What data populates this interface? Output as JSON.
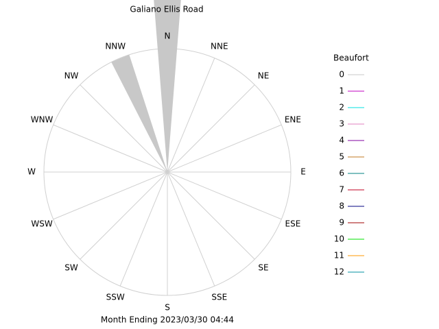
{
  "chart_data": {
    "type": "windrose",
    "title": "Galiano Ellis Road",
    "footer": "Month Ending 2023/03/30 04:44",
    "legend_title": "Beaufort",
    "categories": [
      "N",
      "NNE",
      "NE",
      "ENE",
      "E",
      "ESE",
      "SE",
      "SSE",
      "S",
      "SSW",
      "SW",
      "WSW",
      "W",
      "WNW",
      "NW",
      "NNW"
    ],
    "rlim": [
      0,
      100
    ],
    "series": [
      {
        "name": "0",
        "color": "#c8c8c8",
        "values": [
          140,
          0,
          0,
          0,
          0,
          0,
          0,
          0,
          0,
          0,
          0,
          0,
          0,
          0,
          0,
          100
        ]
      },
      {
        "name": "1",
        "color": "#c000c0",
        "values": [
          0,
          0,
          0,
          0,
          0,
          0,
          0,
          0,
          0,
          0,
          0,
          0,
          0,
          0,
          0,
          0
        ]
      },
      {
        "name": "2",
        "color": "#00e0e0",
        "values": [
          0,
          0,
          0,
          0,
          0,
          0,
          0,
          0,
          0,
          0,
          0,
          0,
          0,
          0,
          0,
          0
        ]
      },
      {
        "name": "3",
        "color": "#e080c0",
        "values": [
          0,
          0,
          0,
          0,
          0,
          0,
          0,
          0,
          0,
          0,
          0,
          0,
          0,
          0,
          0,
          0
        ]
      },
      {
        "name": "4",
        "color": "#8000a0",
        "values": [
          0,
          0,
          0,
          0,
          0,
          0,
          0,
          0,
          0,
          0,
          0,
          0,
          0,
          0,
          0,
          0
        ]
      },
      {
        "name": "5",
        "color": "#c07820",
        "values": [
          0,
          0,
          0,
          0,
          0,
          0,
          0,
          0,
          0,
          0,
          0,
          0,
          0,
          0,
          0,
          0
        ]
      },
      {
        "name": "6",
        "color": "#008080",
        "values": [
          0,
          0,
          0,
          0,
          0,
          0,
          0,
          0,
          0,
          0,
          0,
          0,
          0,
          0,
          0,
          0
        ]
      },
      {
        "name": "7",
        "color": "#c00020",
        "values": [
          0,
          0,
          0,
          0,
          0,
          0,
          0,
          0,
          0,
          0,
          0,
          0,
          0,
          0,
          0,
          0
        ]
      },
      {
        "name": "8",
        "color": "#000080",
        "values": [
          0,
          0,
          0,
          0,
          0,
          0,
          0,
          0,
          0,
          0,
          0,
          0,
          0,
          0,
          0,
          0
        ]
      },
      {
        "name": "9",
        "color": "#a00000",
        "values": [
          0,
          0,
          0,
          0,
          0,
          0,
          0,
          0,
          0,
          0,
          0,
          0,
          0,
          0,
          0,
          0
        ]
      },
      {
        "name": "10",
        "color": "#00e000",
        "values": [
          0,
          0,
          0,
          0,
          0,
          0,
          0,
          0,
          0,
          0,
          0,
          0,
          0,
          0,
          0,
          0
        ]
      },
      {
        "name": "11",
        "color": "#ff9900",
        "values": [
          0,
          0,
          0,
          0,
          0,
          0,
          0,
          0,
          0,
          0,
          0,
          0,
          0,
          0,
          0,
          0
        ]
      },
      {
        "name": "12",
        "color": "#0090a0",
        "values": [
          0,
          0,
          0,
          0,
          0,
          0,
          0,
          0,
          0,
          0,
          0,
          0,
          0,
          0,
          0,
          0
        ]
      }
    ]
  }
}
